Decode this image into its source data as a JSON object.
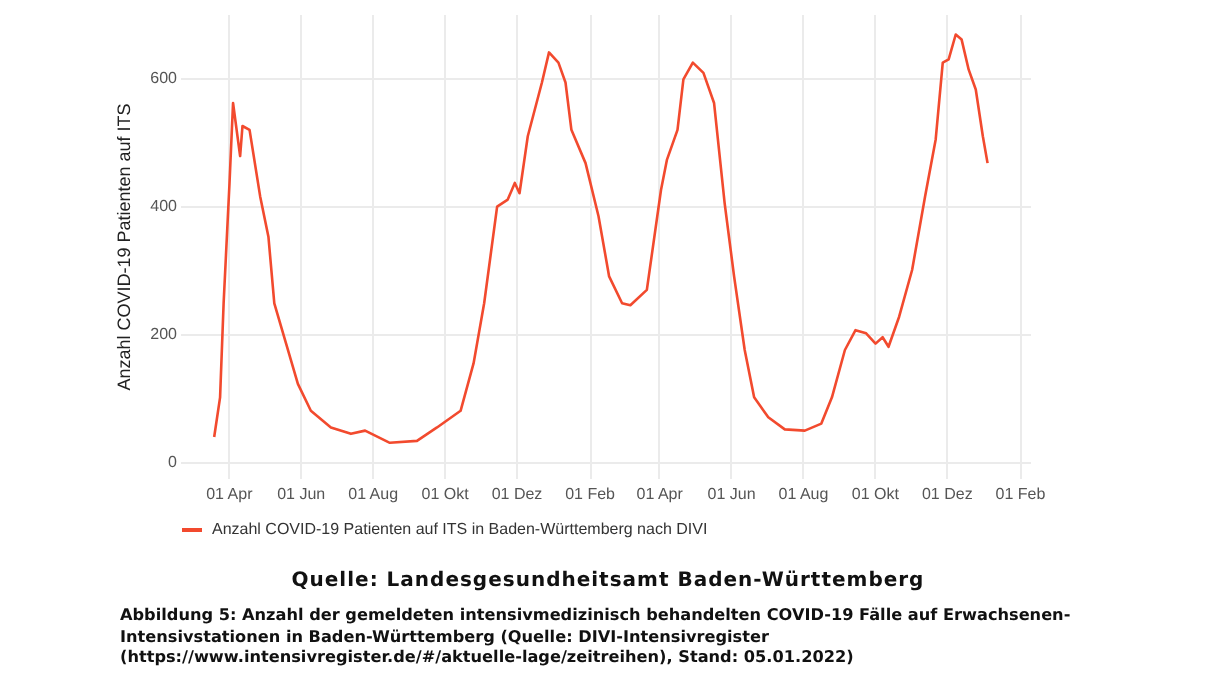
{
  "chart_data": {
    "type": "line",
    "ylabel": "Anzahl COVID-19 Patienten auf ITS",
    "xlim": [
      "2020-02-20",
      "2022-02-10"
    ],
    "ylim": [
      -25,
      700
    ],
    "yticks": [
      0,
      200,
      400,
      600
    ],
    "xticks": [
      {
        "value": "2020-04-01",
        "label": "01 Apr"
      },
      {
        "value": "2020-06-01",
        "label": "01 Jun"
      },
      {
        "value": "2020-08-01",
        "label": "01 Aug"
      },
      {
        "value": "2020-10-01",
        "label": "01 Okt"
      },
      {
        "value": "2020-12-01",
        "label": "01 Dez"
      },
      {
        "value": "2021-02-01",
        "label": "01 Feb"
      },
      {
        "value": "2021-04-01",
        "label": "01 Apr"
      },
      {
        "value": "2021-06-01",
        "label": "01 Jun"
      },
      {
        "value": "2021-08-01",
        "label": "01 Aug"
      },
      {
        "value": "2021-10-01",
        "label": "01 Okt"
      },
      {
        "value": "2021-12-01",
        "label": "01 Dez"
      },
      {
        "value": "2022-02-01",
        "label": "01 Feb"
      }
    ],
    "grid": true,
    "legend": "bottom",
    "line_style": "solid",
    "x": [
      "2020-03-20",
      "2020-03-25",
      "2020-03-28",
      "2020-04-02",
      "2020-04-05",
      "2020-04-11",
      "2020-04-13",
      "2020-04-19",
      "2020-04-28",
      "2020-05-05",
      "2020-05-10",
      "2020-05-20",
      "2020-05-30",
      "2020-06-10",
      "2020-06-27",
      "2020-07-14",
      "2020-07-26",
      "2020-08-16",
      "2020-09-08",
      "2020-09-25",
      "2020-10-15",
      "2020-10-26",
      "2020-11-04",
      "2020-11-15",
      "2020-11-24",
      "2020-11-30",
      "2020-12-04",
      "2020-12-11",
      "2020-12-23",
      "2020-12-29",
      "2021-01-06",
      "2021-01-12",
      "2021-01-17",
      "2021-01-29",
      "2021-02-09",
      "2021-02-18",
      "2021-03-01",
      "2021-03-08",
      "2021-03-22",
      "2021-04-03",
      "2021-04-08",
      "2021-04-17",
      "2021-04-22",
      "2021-04-30",
      "2021-05-09",
      "2021-05-18",
      "2021-05-27",
      "2021-06-04",
      "2021-06-13",
      "2021-06-21",
      "2021-07-03",
      "2021-07-17",
      "2021-08-03",
      "2021-08-17",
      "2021-08-26",
      "2021-09-06",
      "2021-09-15",
      "2021-09-24",
      "2021-10-02",
      "2021-10-08",
      "2021-10-13",
      "2021-10-22",
      "2021-11-02",
      "2021-11-13",
      "2021-11-22",
      "2021-11-28",
      "2021-12-03",
      "2021-12-09",
      "2021-12-14",
      "2021-12-20",
      "2021-12-26",
      "2022-01-01",
      "2022-01-05"
    ],
    "series": [
      {
        "name": "Anzahl COVID-19 Patienten auf ITS in Baden-Württemberg nach DIVI",
        "color": "#f24a2e",
        "values": [
          39,
          101,
          248,
          436,
          561,
          478,
          525,
          519,
          415,
          352,
          248,
          185,
          122,
          80,
          54,
          44,
          49,
          30,
          33,
          54,
          80,
          154,
          248,
          399,
          410,
          436,
          420,
          509,
          593,
          640,
          624,
          593,
          519,
          467,
          384,
          290,
          248,
          245,
          269,
          425,
          472,
          519,
          598,
          624,
          608,
          561,
          404,
          290,
          175,
          101,
          70,
          51,
          49,
          60,
          101,
          175,
          206,
          201,
          185,
          195,
          180,
          227,
          300,
          415,
          504,
          624,
          629,
          668,
          660,
          613,
          582,
          509,
          467
        ]
      }
    ],
    "annotations": [
      "Quelle: Landesgesundheitsamt Baden-Württemberg",
      "Abbildung 5: Anzahl der gemeldeten intensivmedizinisch behandelten COVID-19 Fälle auf Erwachsenen-Intensivstationen in Baden-Württemberg (Quelle: DIVI-Intensivregister (https://www.intensivregister.de/#/aktuelle-lage/zeitreihen), Stand: 05.01.2022)"
    ]
  }
}
